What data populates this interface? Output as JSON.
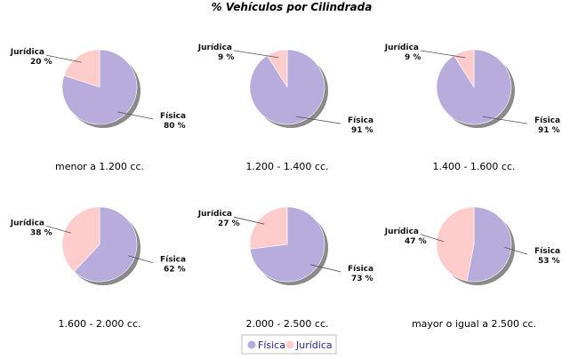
{
  "chart_data": {
    "type": "pie",
    "title": "% Vehículos por Cilindrada",
    "legend": {
      "placement": "bottom-center",
      "entries": [
        "Física",
        "Jurídica"
      ]
    },
    "series_colors": {
      "Física": "#b7acdc",
      "Jurídica": "#ffcccc"
    },
    "pies": [
      {
        "category": "menor a 1.200 cc.",
        "slices": [
          {
            "name": "Física",
            "value": 80,
            "label": "80 %"
          },
          {
            "name": "Jurídica",
            "value": 20,
            "label": "20 %"
          }
        ]
      },
      {
        "category": "1.200 - 1.400 cc.",
        "slices": [
          {
            "name": "Física",
            "value": 91,
            "label": "91 %"
          },
          {
            "name": "Jurídica",
            "value": 9,
            "label": "9 %"
          }
        ]
      },
      {
        "category": "1.400 - 1.600 cc.",
        "slices": [
          {
            "name": "Física",
            "value": 91,
            "label": "91 %"
          },
          {
            "name": "Jurídica",
            "value": 9,
            "label": "9 %"
          }
        ]
      },
      {
        "category": "1.600 - 2.000 cc.",
        "slices": [
          {
            "name": "Física",
            "value": 62,
            "label": "62 %"
          },
          {
            "name": "Jurídica",
            "value": 38,
            "label": "38 %"
          }
        ]
      },
      {
        "category": "2.000 - 2.500 cc.",
        "slices": [
          {
            "name": "Física",
            "value": 73,
            "label": "73 %"
          },
          {
            "name": "Jurídica",
            "value": 27,
            "label": "27 %"
          }
        ]
      },
      {
        "category": "mayor o igual a 2.500 cc.",
        "slices": [
          {
            "name": "Física",
            "value": 53,
            "label": "53 %"
          },
          {
            "name": "Jurídica",
            "value": 47,
            "label": "47 %"
          }
        ]
      }
    ]
  }
}
